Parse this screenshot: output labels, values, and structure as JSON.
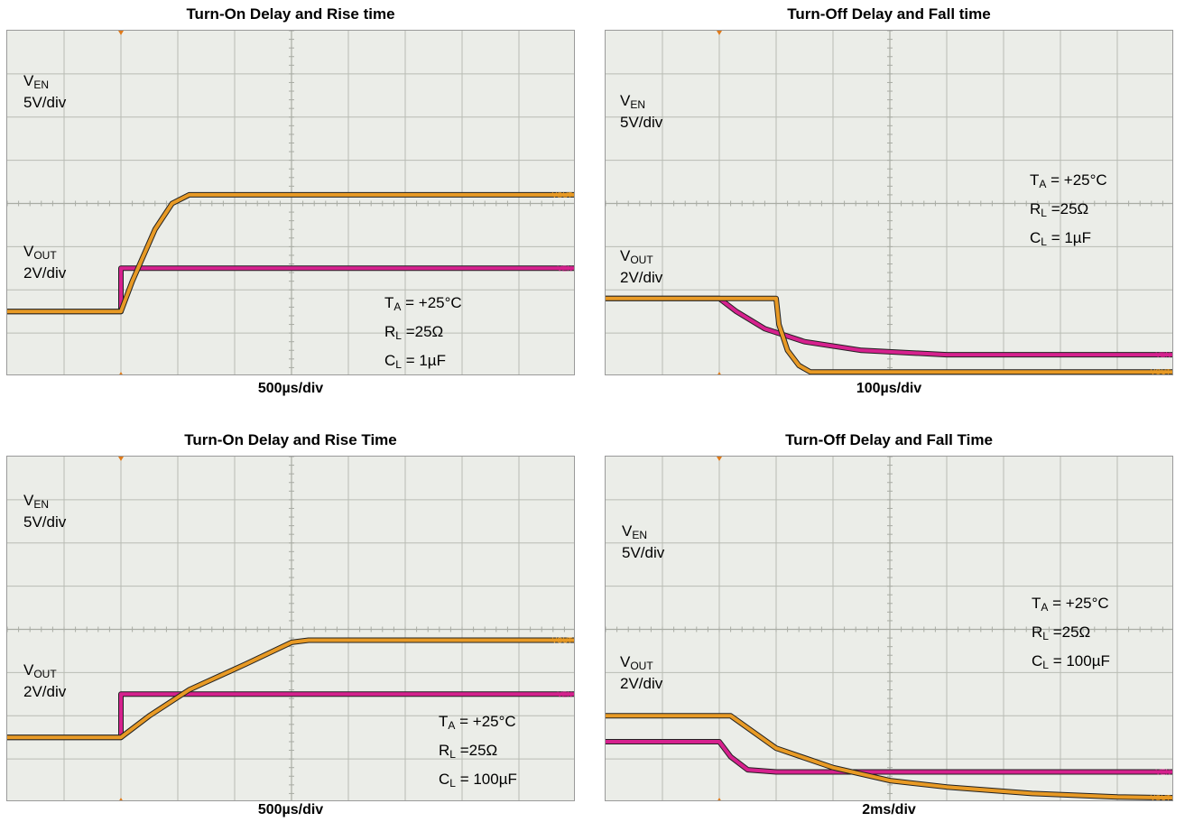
{
  "chart_data": [
    {
      "type": "line",
      "title": "Turn-On Delay and Rise time",
      "xlabel": "500µs/div",
      "grid": true,
      "x_divisions": 10,
      "y_divisions": 8,
      "series": [
        {
          "name": "VEN",
          "scale": "5V/div",
          "channel_tag": "VEN",
          "x_div": [
            0,
            2,
            2,
            10
          ],
          "y_div": [
            1.5,
            1.5,
            2.5,
            2.5
          ]
        },
        {
          "name": "VOUT",
          "scale": "2V/div",
          "channel_tag": "VOUT",
          "x_div": [
            0,
            2,
            2.2,
            2.6,
            2.9,
            3.2,
            10
          ],
          "y_div": [
            1.5,
            1.5,
            2.2,
            3.4,
            4.0,
            4.2,
            4.2
          ]
        }
      ],
      "annotations": {
        "ta": "+25°C",
        "rl": "25Ω",
        "cl": "1µF"
      }
    },
    {
      "type": "line",
      "title": "Turn-Off Delay and Fall time",
      "xlabel": "100µs/div",
      "grid": true,
      "x_divisions": 10,
      "y_divisions": 8,
      "series": [
        {
          "name": "VEN",
          "scale": "5V/div",
          "channel_tag": "VEN",
          "x_div": [
            0,
            2,
            2.3,
            2.8,
            3.5,
            4.5,
            6,
            10
          ],
          "y_div": [
            1.8,
            1.8,
            1.5,
            1.1,
            0.8,
            0.6,
            0.5,
            0.5
          ]
        },
        {
          "name": "VOUT",
          "scale": "2V/div",
          "channel_tag": "VOUT",
          "x_div": [
            0,
            3,
            3.05,
            3.2,
            3.4,
            3.6,
            10
          ],
          "y_div": [
            1.8,
            1.8,
            1.2,
            0.6,
            0.25,
            0.1,
            0.1
          ]
        }
      ],
      "annotations": {
        "ta": "+25°C",
        "rl": "25Ω",
        "cl": "1µF"
      }
    },
    {
      "type": "line",
      "title": "Turn-On Delay and Rise Time",
      "xlabel": "500µs/div",
      "grid": true,
      "x_divisions": 10,
      "y_divisions": 8,
      "series": [
        {
          "name": "VEN",
          "scale": "5V/div",
          "channel_tag": "VEN",
          "x_div": [
            0,
            2,
            2,
            10
          ],
          "y_div": [
            1.5,
            1.5,
            2.5,
            2.5
          ]
        },
        {
          "name": "VOUT",
          "scale": "2V/div",
          "channel_tag": "VOUT",
          "x_div": [
            0,
            2,
            2.5,
            3.2,
            4.2,
            5,
            5.3,
            10
          ],
          "y_div": [
            1.5,
            1.5,
            2.0,
            2.6,
            3.2,
            3.7,
            3.75,
            3.75
          ]
        }
      ],
      "annotations": {
        "ta": "+25°C",
        "rl": "25Ω",
        "cl": "100µF"
      }
    },
    {
      "type": "line",
      "title": "Turn-Off Delay and Fall Time",
      "xlabel": "2ms/div",
      "grid": true,
      "x_divisions": 10,
      "y_divisions": 8,
      "series": [
        {
          "name": "VEN",
          "scale": "5V/div",
          "channel_tag": "VEN",
          "x_div": [
            0,
            2,
            2.2,
            2.5,
            3,
            10
          ],
          "y_div": [
            1.4,
            1.4,
            1.05,
            0.75,
            0.7,
            0.7
          ]
        },
        {
          "name": "VOUT",
          "scale": "2V/div",
          "channel_tag": "VOUT",
          "x_div": [
            0,
            2.2,
            3,
            4,
            5,
            6,
            7.5,
            9,
            10
          ],
          "y_div": [
            2.0,
            2.0,
            1.25,
            0.8,
            0.5,
            0.35,
            0.2,
            0.12,
            0.1
          ]
        }
      ],
      "annotations": {
        "ta": "+25°C",
        "rl": "25Ω",
        "cl": "100µF"
      }
    }
  ],
  "colors": {
    "ven": "#d6218e",
    "vout": "#e89a25",
    "trace_edge": "#222222",
    "grid": "#b9bcb4",
    "screen": "#ebede8"
  },
  "labels": {
    "v": "V",
    "en_sub": "EN",
    "out_sub": "OUT",
    "t": "T",
    "a_sub": "A",
    "r": "R",
    "l_sub": "L",
    "c": "C",
    "eq": " = ",
    "eq_tight": " =",
    "trig_tag": "T"
  }
}
